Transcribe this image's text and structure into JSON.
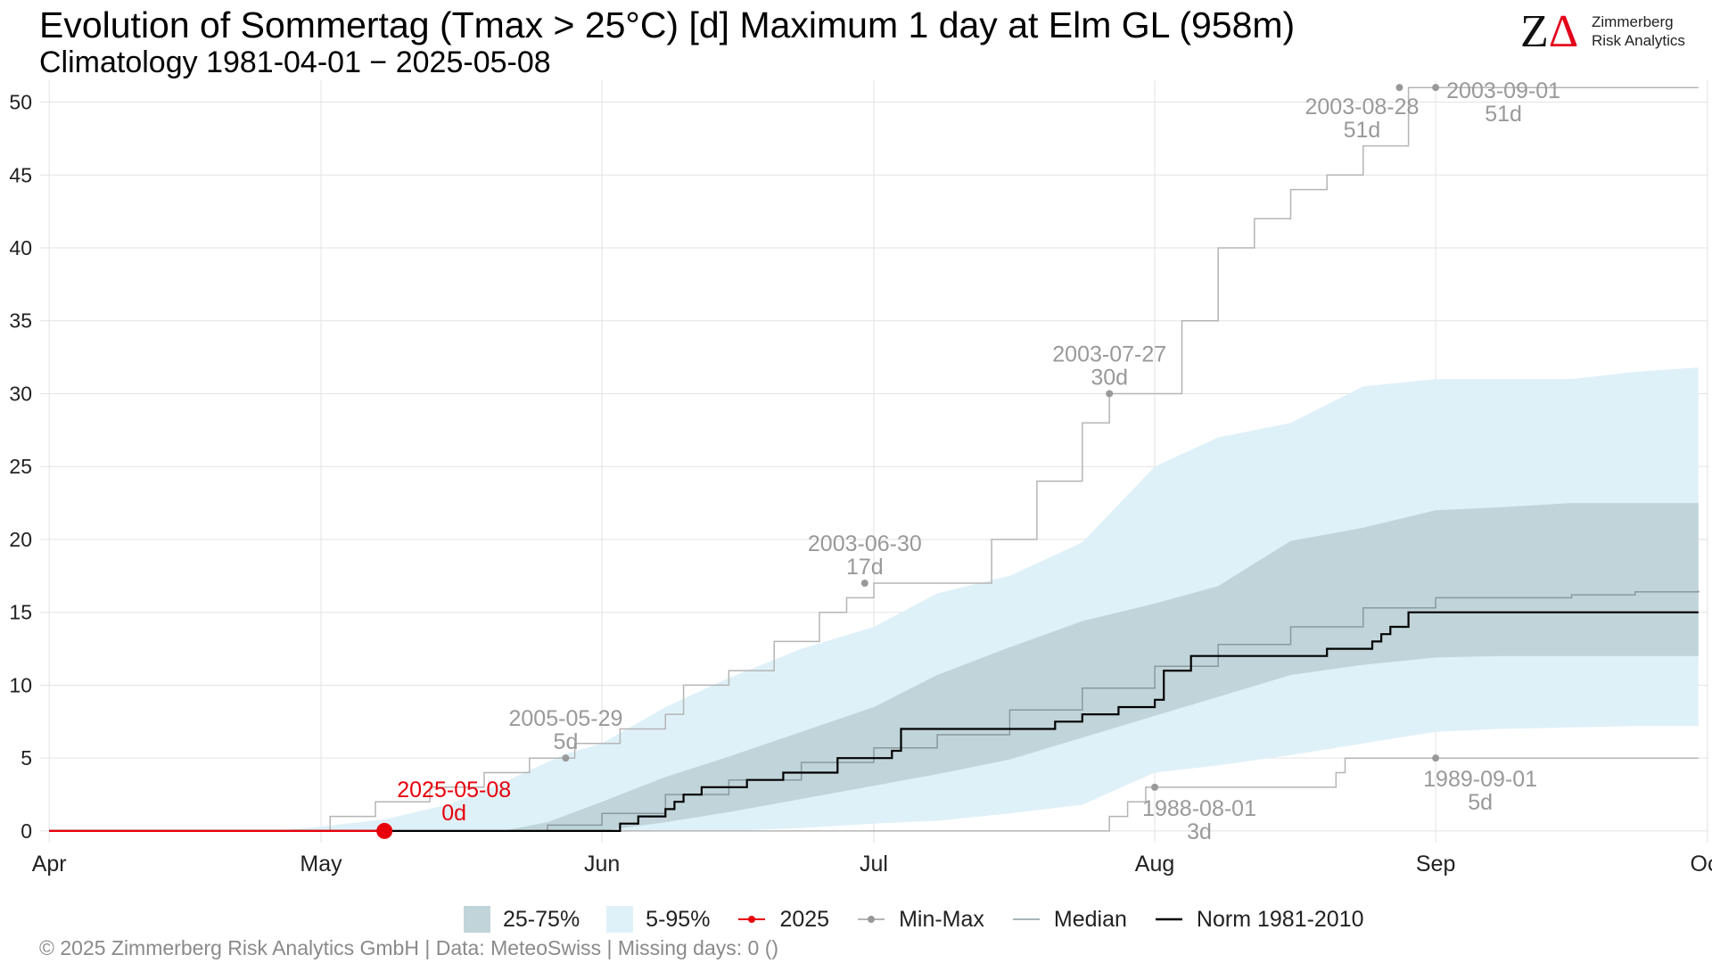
{
  "header": {
    "title": "Evolution of Sommertag (Tmax > 25°C) [d] Maximum 1 day at Elm  GL (958m)",
    "subtitle": "Climatology 1981-04-01 − 2025-05-08"
  },
  "logo": {
    "line1": "Zimmerberg",
    "line2": "Risk Analytics",
    "mark_z": "Z",
    "mark_delta": "Δ"
  },
  "footer": {
    "text": "©  2025 Zimmerberg Risk Analytics GmbH | Data: MeteoSwiss | Missing days: 0 ()"
  },
  "legend": {
    "band_25_75": "25-75%",
    "band_5_95": "5-95%",
    "current": "2025",
    "minmax": "Min-Max",
    "median": "Median",
    "norm": "Norm 1981-2010"
  },
  "colors": {
    "band_25_75": "#c0d4da",
    "band_5_95": "#dff1f8",
    "current": "#e8000b",
    "minmax": "#b5b5b5",
    "minmax_point": "#999999",
    "median": "#8a9a9e",
    "norm": "#000000",
    "annotation": "#999999"
  },
  "chart_data": {
    "type": "line",
    "x_unit": "day_of_season_from_Apr_1",
    "xlim": [
      -1,
      183
    ],
    "ylim": [
      -0.8,
      51.5
    ],
    "y_ticks": [
      0,
      5,
      10,
      15,
      20,
      25,
      30,
      35,
      40,
      45,
      50
    ],
    "x_ticks": [
      {
        "label": "Apr",
        "day": 0
      },
      {
        "label": "May",
        "day": 30
      },
      {
        "label": "Jun",
        "day": 61
      },
      {
        "label": "Jul",
        "day": 91
      },
      {
        "label": "Aug",
        "day": 122
      },
      {
        "label": "Sep",
        "day": 153
      },
      {
        "label": "Oct",
        "day": 183
      }
    ],
    "grid": true,
    "legend_position": "bottom",
    "band_5_95": {
      "days": [
        0,
        25,
        30,
        37,
        44,
        50,
        57,
        61,
        68,
        75,
        83,
        91,
        98,
        106,
        114,
        122,
        129,
        137,
        145,
        153,
        160,
        168,
        175,
        182
      ],
      "low": [
        0,
        0,
        0,
        0,
        0,
        0,
        0,
        0,
        0,
        0,
        0.2,
        0.5,
        0.7,
        1.2,
        1.8,
        4.0,
        4.5,
        5.2,
        6.0,
        6.8,
        7.0,
        7.1,
        7.2,
        7.2
      ],
      "high": [
        0,
        0,
        0.3,
        0.8,
        1.8,
        3.3,
        5.3,
        6.0,
        8.5,
        10.5,
        12.5,
        14.0,
        16.3,
        17.5,
        19.8,
        25.0,
        27.0,
        28.0,
        30.5,
        31.0,
        31.0,
        31.0,
        31.5,
        31.8
      ]
    },
    "band_25_75": {
      "days": [
        0,
        50,
        55,
        61,
        68,
        75,
        83,
        91,
        98,
        106,
        114,
        122,
        129,
        137,
        145,
        153,
        160,
        168,
        175,
        182
      ],
      "low": [
        0,
        0,
        0,
        0,
        0.6,
        1.3,
        2.2,
        3.1,
        3.9,
        4.9,
        6.4,
        7.9,
        9.2,
        10.7,
        11.4,
        11.9,
        12.0,
        12.0,
        12.0,
        12.0
      ],
      "high": [
        0,
        0,
        0.6,
        2.0,
        3.7,
        5.1,
        6.8,
        8.5,
        10.7,
        12.6,
        14.4,
        15.6,
        16.8,
        19.9,
        20.8,
        22.0,
        22.2,
        22.5,
        22.5,
        22.5
      ]
    },
    "series": [
      {
        "name": "2025",
        "days": [
          0,
          37
        ],
        "values": [
          0,
          0
        ],
        "annotation": {
          "day": 37,
          "value": 0,
          "date": "2025-05-08",
          "label": "0d"
        }
      },
      {
        "name": "Min-Max",
        "max_days": [
          0,
          30,
          31,
          35,
          36,
          41,
          42,
          47,
          48,
          52,
          53,
          57,
          58,
          61,
          63,
          68,
          70,
          75,
          80,
          85,
          88,
          91,
          100,
          104,
          109,
          114,
          117,
          121,
          125,
          129,
          133,
          137,
          141,
          145,
          150,
          158,
          182
        ],
        "max_values": [
          0,
          0,
          1,
          1,
          2,
          2,
          3,
          3,
          4,
          4,
          5,
          5,
          6,
          6,
          7,
          8,
          10,
          11,
          13,
          15,
          16,
          17,
          17,
          20,
          24,
          28,
          30,
          30,
          35,
          40,
          42,
          44,
          45,
          47,
          51,
          51,
          51
        ],
        "min_days": [
          0,
          116,
          117,
          118,
          119,
          120,
          121,
          137,
          140,
          142,
          143,
          145,
          182
        ],
        "min_values": [
          0,
          0,
          1,
          1,
          2,
          2,
          3,
          3,
          3,
          4,
          5,
          5,
          5
        ],
        "annotations": [
          {
            "day": 57,
            "value": 5,
            "date": "2005-05-29",
            "label": "5d"
          },
          {
            "day": 90,
            "value": 17,
            "date": "2003-06-30",
            "label": "17d"
          },
          {
            "day": 117,
            "value": 30,
            "date": "2003-07-27",
            "label": "30d"
          },
          {
            "day": 149,
            "value": 51,
            "date": "2003-08-28",
            "label": "51d"
          },
          {
            "day": 153,
            "value": 51,
            "date": "2003-09-01",
            "label": "51d"
          },
          {
            "day": 122,
            "value": 3,
            "date": "1988-08-01",
            "label": "3d"
          },
          {
            "day": 153,
            "value": 5,
            "date": "1989-09-01",
            "label": "5d"
          }
        ]
      },
      {
        "name": "Median",
        "days": [
          0,
          50,
          55,
          61,
          68,
          75,
          83,
          91,
          98,
          106,
          114,
          122,
          129,
          137,
          145,
          153,
          160,
          168,
          175,
          182
        ],
        "values": [
          0,
          0,
          0.4,
          1.2,
          2.5,
          3.5,
          4.7,
          5.7,
          6.6,
          8.3,
          9.8,
          11.3,
          12.8,
          14.0,
          15.3,
          16.0,
          16.0,
          16.2,
          16.4,
          16.5
        ]
      },
      {
        "name": "Norm 1981-2010",
        "days": [
          0,
          60,
          63,
          65,
          68,
          69,
          70,
          72,
          77,
          81,
          87,
          93,
          94,
          104,
          111,
          113,
          114,
          118,
          122,
          123,
          126,
          139,
          141,
          146,
          147,
          148,
          150,
          182
        ],
        "values": [
          0,
          0,
          0.5,
          1.0,
          1.5,
          2.0,
          2.5,
          3.0,
          3.5,
          4.0,
          5.0,
          5.5,
          7.0,
          7.0,
          7.5,
          7.5,
          8.0,
          8.5,
          9.0,
          11.0,
          12.0,
          12.0,
          12.5,
          13.0,
          13.5,
          14.0,
          15.0,
          15.0
        ]
      }
    ]
  }
}
